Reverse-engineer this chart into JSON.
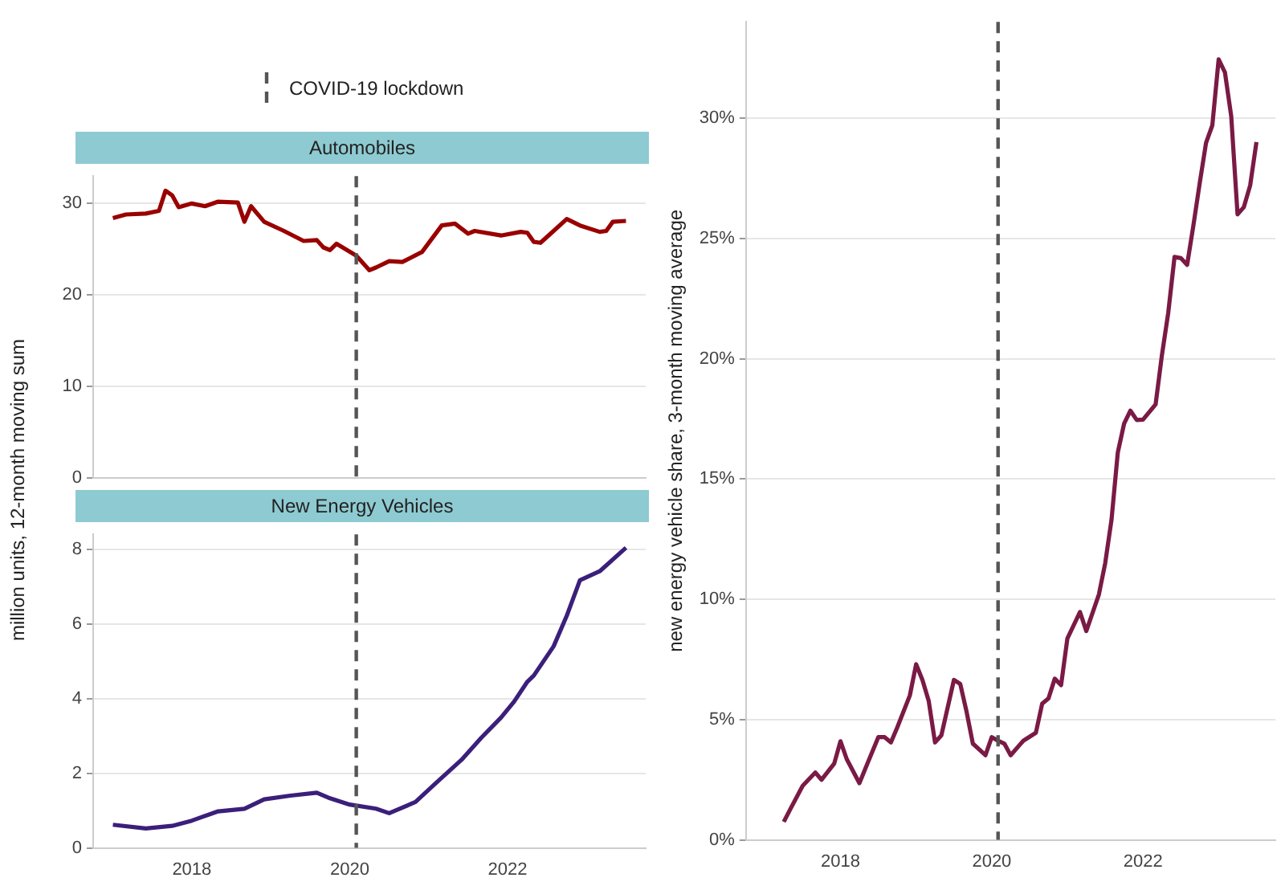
{
  "chart_data": [
    {
      "type": "line",
      "title": "Automobiles",
      "ylabel": "million units, 12-month moving sum",
      "legend": "top",
      "grid": "y",
      "tick_labels": "y",
      "xlim": [
        "2016-10",
        "2023-10"
      ],
      "xticks": [
        "2018",
        "2020",
        "2022"
      ],
      "ylim": [
        0,
        33
      ],
      "yticks": [
        0,
        10,
        20,
        30
      ],
      "ref_lines": [
        {
          "axis": "x",
          "value": "2020-02",
          "label": "COVID-19 lockdown",
          "color": "#555555",
          "line_style": "dashed"
        }
      ],
      "series": [
        {
          "color": "#990000",
          "x": [
            "2017-01",
            "2017-03",
            "2017-06",
            "2017-08",
            "2017-09",
            "2017-10",
            "2017-11",
            "2018-01",
            "2018-03",
            "2018-05",
            "2018-08",
            "2018-09",
            "2018-10",
            "2018-12",
            "2019-03",
            "2019-06",
            "2019-08",
            "2019-09",
            "2019-10",
            "2019-11",
            "2020-02",
            "2020-04",
            "2020-05",
            "2020-07",
            "2020-09",
            "2020-12",
            "2021-03",
            "2021-05",
            "2021-07",
            "2021-08",
            "2021-12",
            "2022-03",
            "2022-04",
            "2022-05",
            "2022-06",
            "2022-08",
            "2022-10",
            "2022-12",
            "2023-03",
            "2023-04",
            "2023-05",
            "2023-07"
          ],
          "values": [
            28.4,
            28.8,
            28.9,
            29.2,
            31.4,
            30.9,
            29.6,
            30.0,
            29.7,
            30.2,
            30.1,
            28.0,
            29.7,
            28.0,
            27.0,
            25.9,
            26.0,
            25.2,
            24.9,
            25.6,
            24.3,
            22.7,
            23.0,
            23.7,
            23.6,
            24.7,
            27.6,
            27.8,
            26.7,
            27.0,
            26.5,
            26.9,
            26.8,
            25.8,
            25.7,
            27.0,
            28.3,
            27.6,
            26.9,
            27.0,
            28.0,
            28.1
          ]
        }
      ]
    },
    {
      "type": "line",
      "title": "New Energy Vehicles",
      "grid": "y",
      "xlim": [
        "2016-10",
        "2023-10"
      ],
      "xticks": [
        "2018",
        "2020",
        "2022"
      ],
      "ylim": [
        0,
        8.4
      ],
      "yticks": [
        0,
        2,
        4,
        6,
        8
      ],
      "ref_lines": [
        {
          "axis": "x",
          "value": "2020-02",
          "color": "#555555",
          "line_style": "dashed"
        }
      ],
      "series": [
        {
          "color": "#3b1f7a",
          "x": [
            "2017-01",
            "2017-06",
            "2017-10",
            "2018-01",
            "2018-05",
            "2018-09",
            "2018-12",
            "2019-04",
            "2019-08",
            "2019-10",
            "2020-01",
            "2020-05",
            "2020-07",
            "2020-11",
            "2021-02",
            "2021-06",
            "2021-09",
            "2021-12",
            "2022-02",
            "2022-04",
            "2022-05",
            "2022-08",
            "2022-10",
            "2022-12",
            "2023-03",
            "2023-07"
          ],
          "values": [
            0.62,
            0.52,
            0.59,
            0.73,
            0.98,
            1.05,
            1.3,
            1.4,
            1.48,
            1.33,
            1.16,
            1.05,
            0.93,
            1.23,
            1.72,
            2.36,
            2.95,
            3.49,
            3.92,
            4.45,
            4.62,
            5.4,
            6.22,
            7.17,
            7.41,
            8.04
          ]
        }
      ]
    },
    {
      "type": "line",
      "ylabel": "new energy vehicle share, 3-month moving average",
      "grid": "y",
      "xlim": [
        "2016-10",
        "2023-10"
      ],
      "xticks": [
        "2018",
        "2020",
        "2022"
      ],
      "ylim": [
        0,
        34
      ],
      "yticks": [
        {
          "value": 0,
          "label": "0%"
        },
        {
          "value": 5,
          "label": "5%"
        },
        {
          "value": 10,
          "label": "10%"
        },
        {
          "value": 15,
          "label": "15%"
        },
        {
          "value": 20,
          "label": "20%"
        },
        {
          "value": 25,
          "label": "25%"
        },
        {
          "value": 30,
          "label": "30%"
        }
      ],
      "ref_lines": [
        {
          "axis": "x",
          "value": "2020-02",
          "color": "#555555",
          "line_style": "dashed"
        }
      ],
      "series": [
        {
          "color": "#7a1a45",
          "x": [
            "2017-04",
            "2017-05",
            "2017-07",
            "2017-09",
            "2017-10",
            "2017-12",
            "2018-01",
            "2018-02",
            "2018-04",
            "2018-05",
            "2018-07",
            "2018-08",
            "2018-09",
            "2018-10",
            "2018-12",
            "2019-01",
            "2019-02",
            "2019-03",
            "2019-04",
            "2019-05",
            "2019-07",
            "2019-08",
            "2019-09",
            "2019-10",
            "2019-12",
            "2020-01",
            "2020-02",
            "2020-03",
            "2020-04",
            "2020-06",
            "2020-08",
            "2020-09",
            "2020-10",
            "2020-11",
            "2020-12",
            "2021-01",
            "2021-03",
            "2021-04",
            "2021-06",
            "2021-07",
            "2021-08",
            "2021-09",
            "2021-10",
            "2021-11",
            "2021-12",
            "2022-01",
            "2022-03",
            "2022-04",
            "2022-05",
            "2022-06",
            "2022-07",
            "2022-08",
            "2022-09",
            "2022-10",
            "2022-11",
            "2022-12",
            "2023-01",
            "2023-02",
            "2023-03",
            "2023-04",
            "2023-05",
            "2023-06",
            "2023-07"
          ],
          "values": [
            0.75,
            1.26,
            2.25,
            2.8,
            2.5,
            3.17,
            4.1,
            3.35,
            2.36,
            3.0,
            4.27,
            4.27,
            4.05,
            4.67,
            6.0,
            7.3,
            6.65,
            5.77,
            4.05,
            4.34,
            6.65,
            6.48,
            5.33,
            4.0,
            3.52,
            4.27,
            4.12,
            4.0,
            3.52,
            4.12,
            4.45,
            5.66,
            5.88,
            6.7,
            6.43,
            8.37,
            9.47,
            8.68,
            10.2,
            11.5,
            13.3,
            16.1,
            17.3,
            17.84,
            17.45,
            17.47,
            18.1,
            20.15,
            21.9,
            24.23,
            24.18,
            23.9,
            25.55,
            27.3,
            28.97,
            29.7,
            32.44,
            31.9,
            30.07,
            26.0,
            26.3,
            27.2,
            29.0
          ]
        }
      ]
    }
  ]
}
